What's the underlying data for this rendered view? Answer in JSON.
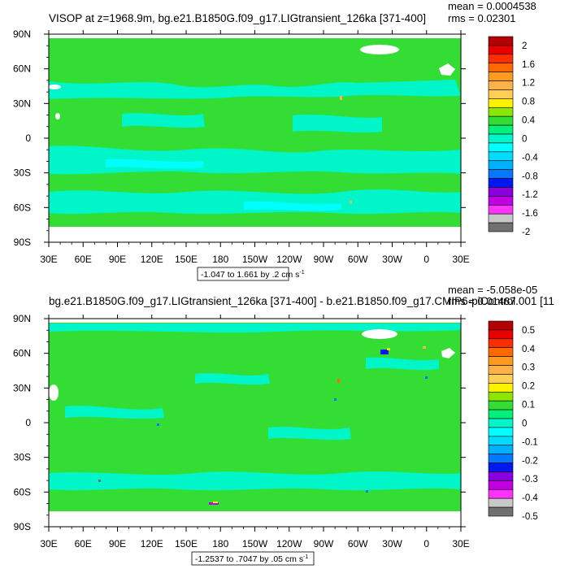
{
  "chart_data": [
    {
      "type": "heatmap",
      "subtype": "global-map-contour",
      "title": "VISOP at z=1968.9m, bg.e21.B1850G.f09_g17.LIGtransient_126ka [371-400]",
      "stats": {
        "mean": "mean = 0.0004538",
        "rms": "rms = 0.02301"
      },
      "range_label": "-1.047 to 1.661 by .2 cm s",
      "range_unit_exp": "-1",
      "x_ticks": [
        "30E",
        "60E",
        "90E",
        "120E",
        "150E",
        "180",
        "150W",
        "120W",
        "90W",
        "60W",
        "30W",
        "0",
        "30E"
      ],
      "y_ticks": [
        "90N",
        "60N",
        "30N",
        "0",
        "30S",
        "60S",
        "90S"
      ],
      "xlim": [
        30,
        390
      ],
      "ylim": [
        -90,
        90
      ],
      "colorbar": {
        "labels": [
          "2",
          "1.6",
          "1.2",
          "0.8",
          "0.4",
          "0",
          "-0.4",
          "-0.8",
          "-1.2",
          "-1.6",
          "-2"
        ],
        "colors": [
          "#B40000",
          "#E80000",
          "#FF2E00",
          "#FF6A00",
          "#FF9A1F",
          "#FFB24A",
          "#FFCF55",
          "#FFF200",
          "#8CE600",
          "#33DD33",
          "#00F07A",
          "#00F5C8",
          "#00FFFF",
          "#00DCFF",
          "#00B0FF",
          "#0078FF",
          "#0018F0",
          "#8800DD",
          "#C000E0",
          "#FF33FF",
          "#C8C8C8",
          "#707070"
        ]
      },
      "dominant_range": "0 to -0.4",
      "secondary_range": "-0.4 to -0.8"
    },
    {
      "type": "heatmap",
      "subtype": "global-map-contour",
      "title": "bg.e21.B1850G.f09_g17.LIGtransient_126ka [371-400] - b.e21.B1850.f09_g17.CMIP6-piControl.001 [11",
      "stats": {
        "mean": "mean = -5.058e-05",
        "rms": "rms = 0.01487"
      },
      "range_label": "-1.2537 to .7047 by .05 cm s",
      "range_unit_exp": "-1",
      "x_ticks": [
        "30E",
        "60E",
        "90E",
        "120E",
        "150E",
        "180",
        "150W",
        "120W",
        "90W",
        "60W",
        "30W",
        "0",
        "30E"
      ],
      "y_ticks": [
        "90N",
        "60N",
        "30N",
        "0",
        "30S",
        "60S",
        "90S"
      ],
      "xlim": [
        30,
        390
      ],
      "ylim": [
        -90,
        90
      ],
      "colorbar": {
        "labels": [
          "0.5",
          "0.4",
          "0.3",
          "0.2",
          "0.1",
          "0",
          "-0.1",
          "-0.2",
          "-0.3",
          "-0.4",
          "-0.5"
        ],
        "colors": [
          "#B40000",
          "#E80000",
          "#FF2E00",
          "#FF6A00",
          "#FF9A1F",
          "#FFB24A",
          "#FFCF55",
          "#FFF200",
          "#8CE600",
          "#33DD33",
          "#00F07A",
          "#00F5C8",
          "#00FFFF",
          "#00DCFF",
          "#00B0FF",
          "#0078FF",
          "#0018F0",
          "#8800DD",
          "#C000E0",
          "#FF33FF",
          "#C8C8C8",
          "#707070"
        ]
      },
      "dominant_range": "0 to 0.1",
      "secondary_range": "0 to -0.1"
    }
  ]
}
